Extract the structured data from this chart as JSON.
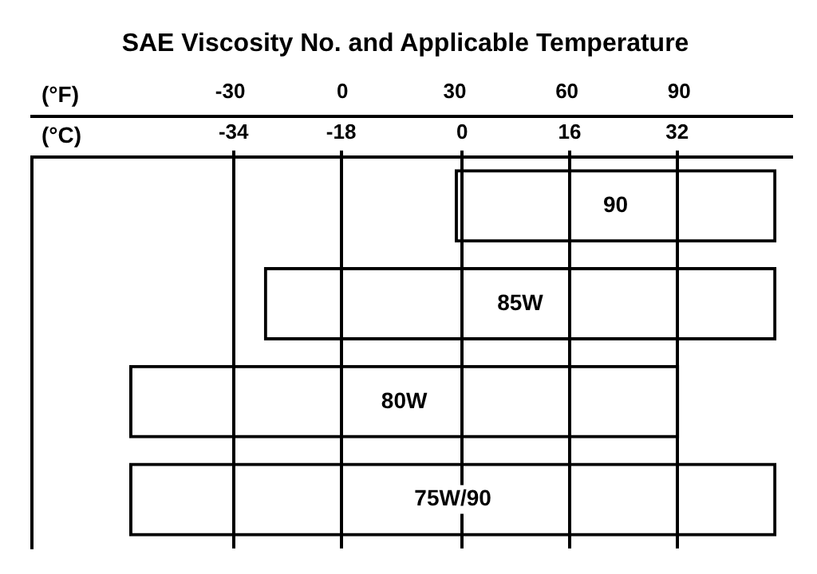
{
  "chart_data": {
    "type": "bar",
    "orientation": "horizontal",
    "title": "SAE Viscosity No. and Applicable Temperature",
    "xlabel": "(°F)",
    "x2label": "(°C)",
    "categories": [
      "90",
      "85W",
      "80W",
      "75W/90"
    ],
    "base": [
      30,
      -21,
      -57,
      -57
    ],
    "values": [
      86,
      137,
      147,
      173
    ],
    "color": "#000000",
    "xlim": [
      -83,
      120
    ],
    "xticks": [
      -30,
      0,
      30,
      60,
      90
    ],
    "x2lim": [
      -64,
      49
    ],
    "x2ticks": [
      -34,
      -18,
      0,
      16,
      32
    ],
    "grid": "x"
  }
}
